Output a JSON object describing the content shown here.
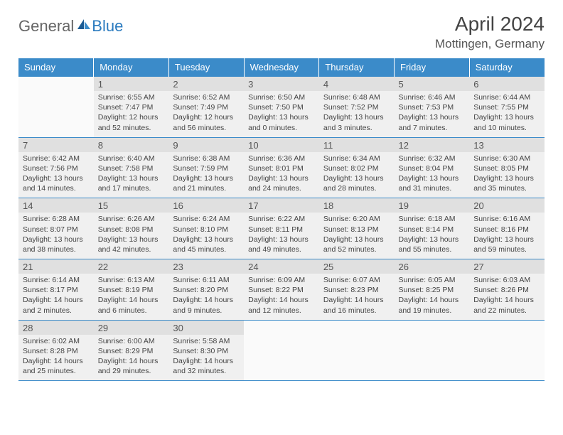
{
  "logo": {
    "general": "General",
    "blue": "Blue"
  },
  "title": "April 2024",
  "location": "Mottingen, Germany",
  "colors": {
    "header_bg": "#3b8bc9",
    "header_fg": "#ffffff",
    "cell_bg": "#f0f0f0",
    "empty_bg": "#fafafa",
    "daynum_bg": "#e0e0e0",
    "border": "#3b8bc9",
    "text": "#444444"
  },
  "weekdays": [
    "Sunday",
    "Monday",
    "Tuesday",
    "Wednesday",
    "Thursday",
    "Friday",
    "Saturday"
  ],
  "weeks": [
    [
      null,
      {
        "d": "1",
        "sr": "Sunrise: 6:55 AM",
        "ss": "Sunset: 7:47 PM",
        "dl": "Daylight: 12 hours and 52 minutes."
      },
      {
        "d": "2",
        "sr": "Sunrise: 6:52 AM",
        "ss": "Sunset: 7:49 PM",
        "dl": "Daylight: 12 hours and 56 minutes."
      },
      {
        "d": "3",
        "sr": "Sunrise: 6:50 AM",
        "ss": "Sunset: 7:50 PM",
        "dl": "Daylight: 13 hours and 0 minutes."
      },
      {
        "d": "4",
        "sr": "Sunrise: 6:48 AM",
        "ss": "Sunset: 7:52 PM",
        "dl": "Daylight: 13 hours and 3 minutes."
      },
      {
        "d": "5",
        "sr": "Sunrise: 6:46 AM",
        "ss": "Sunset: 7:53 PM",
        "dl": "Daylight: 13 hours and 7 minutes."
      },
      {
        "d": "6",
        "sr": "Sunrise: 6:44 AM",
        "ss": "Sunset: 7:55 PM",
        "dl": "Daylight: 13 hours and 10 minutes."
      }
    ],
    [
      {
        "d": "7",
        "sr": "Sunrise: 6:42 AM",
        "ss": "Sunset: 7:56 PM",
        "dl": "Daylight: 13 hours and 14 minutes."
      },
      {
        "d": "8",
        "sr": "Sunrise: 6:40 AM",
        "ss": "Sunset: 7:58 PM",
        "dl": "Daylight: 13 hours and 17 minutes."
      },
      {
        "d": "9",
        "sr": "Sunrise: 6:38 AM",
        "ss": "Sunset: 7:59 PM",
        "dl": "Daylight: 13 hours and 21 minutes."
      },
      {
        "d": "10",
        "sr": "Sunrise: 6:36 AM",
        "ss": "Sunset: 8:01 PM",
        "dl": "Daylight: 13 hours and 24 minutes."
      },
      {
        "d": "11",
        "sr": "Sunrise: 6:34 AM",
        "ss": "Sunset: 8:02 PM",
        "dl": "Daylight: 13 hours and 28 minutes."
      },
      {
        "d": "12",
        "sr": "Sunrise: 6:32 AM",
        "ss": "Sunset: 8:04 PM",
        "dl": "Daylight: 13 hours and 31 minutes."
      },
      {
        "d": "13",
        "sr": "Sunrise: 6:30 AM",
        "ss": "Sunset: 8:05 PM",
        "dl": "Daylight: 13 hours and 35 minutes."
      }
    ],
    [
      {
        "d": "14",
        "sr": "Sunrise: 6:28 AM",
        "ss": "Sunset: 8:07 PM",
        "dl": "Daylight: 13 hours and 38 minutes."
      },
      {
        "d": "15",
        "sr": "Sunrise: 6:26 AM",
        "ss": "Sunset: 8:08 PM",
        "dl": "Daylight: 13 hours and 42 minutes."
      },
      {
        "d": "16",
        "sr": "Sunrise: 6:24 AM",
        "ss": "Sunset: 8:10 PM",
        "dl": "Daylight: 13 hours and 45 minutes."
      },
      {
        "d": "17",
        "sr": "Sunrise: 6:22 AM",
        "ss": "Sunset: 8:11 PM",
        "dl": "Daylight: 13 hours and 49 minutes."
      },
      {
        "d": "18",
        "sr": "Sunrise: 6:20 AM",
        "ss": "Sunset: 8:13 PM",
        "dl": "Daylight: 13 hours and 52 minutes."
      },
      {
        "d": "19",
        "sr": "Sunrise: 6:18 AM",
        "ss": "Sunset: 8:14 PM",
        "dl": "Daylight: 13 hours and 55 minutes."
      },
      {
        "d": "20",
        "sr": "Sunrise: 6:16 AM",
        "ss": "Sunset: 8:16 PM",
        "dl": "Daylight: 13 hours and 59 minutes."
      }
    ],
    [
      {
        "d": "21",
        "sr": "Sunrise: 6:14 AM",
        "ss": "Sunset: 8:17 PM",
        "dl": "Daylight: 14 hours and 2 minutes."
      },
      {
        "d": "22",
        "sr": "Sunrise: 6:13 AM",
        "ss": "Sunset: 8:19 PM",
        "dl": "Daylight: 14 hours and 6 minutes."
      },
      {
        "d": "23",
        "sr": "Sunrise: 6:11 AM",
        "ss": "Sunset: 8:20 PM",
        "dl": "Daylight: 14 hours and 9 minutes."
      },
      {
        "d": "24",
        "sr": "Sunrise: 6:09 AM",
        "ss": "Sunset: 8:22 PM",
        "dl": "Daylight: 14 hours and 12 minutes."
      },
      {
        "d": "25",
        "sr": "Sunrise: 6:07 AM",
        "ss": "Sunset: 8:23 PM",
        "dl": "Daylight: 14 hours and 16 minutes."
      },
      {
        "d": "26",
        "sr": "Sunrise: 6:05 AM",
        "ss": "Sunset: 8:25 PM",
        "dl": "Daylight: 14 hours and 19 minutes."
      },
      {
        "d": "27",
        "sr": "Sunrise: 6:03 AM",
        "ss": "Sunset: 8:26 PM",
        "dl": "Daylight: 14 hours and 22 minutes."
      }
    ],
    [
      {
        "d": "28",
        "sr": "Sunrise: 6:02 AM",
        "ss": "Sunset: 8:28 PM",
        "dl": "Daylight: 14 hours and 25 minutes."
      },
      {
        "d": "29",
        "sr": "Sunrise: 6:00 AM",
        "ss": "Sunset: 8:29 PM",
        "dl": "Daylight: 14 hours and 29 minutes."
      },
      {
        "d": "30",
        "sr": "Sunrise: 5:58 AM",
        "ss": "Sunset: 8:30 PM",
        "dl": "Daylight: 14 hours and 32 minutes."
      },
      null,
      null,
      null,
      null
    ]
  ]
}
